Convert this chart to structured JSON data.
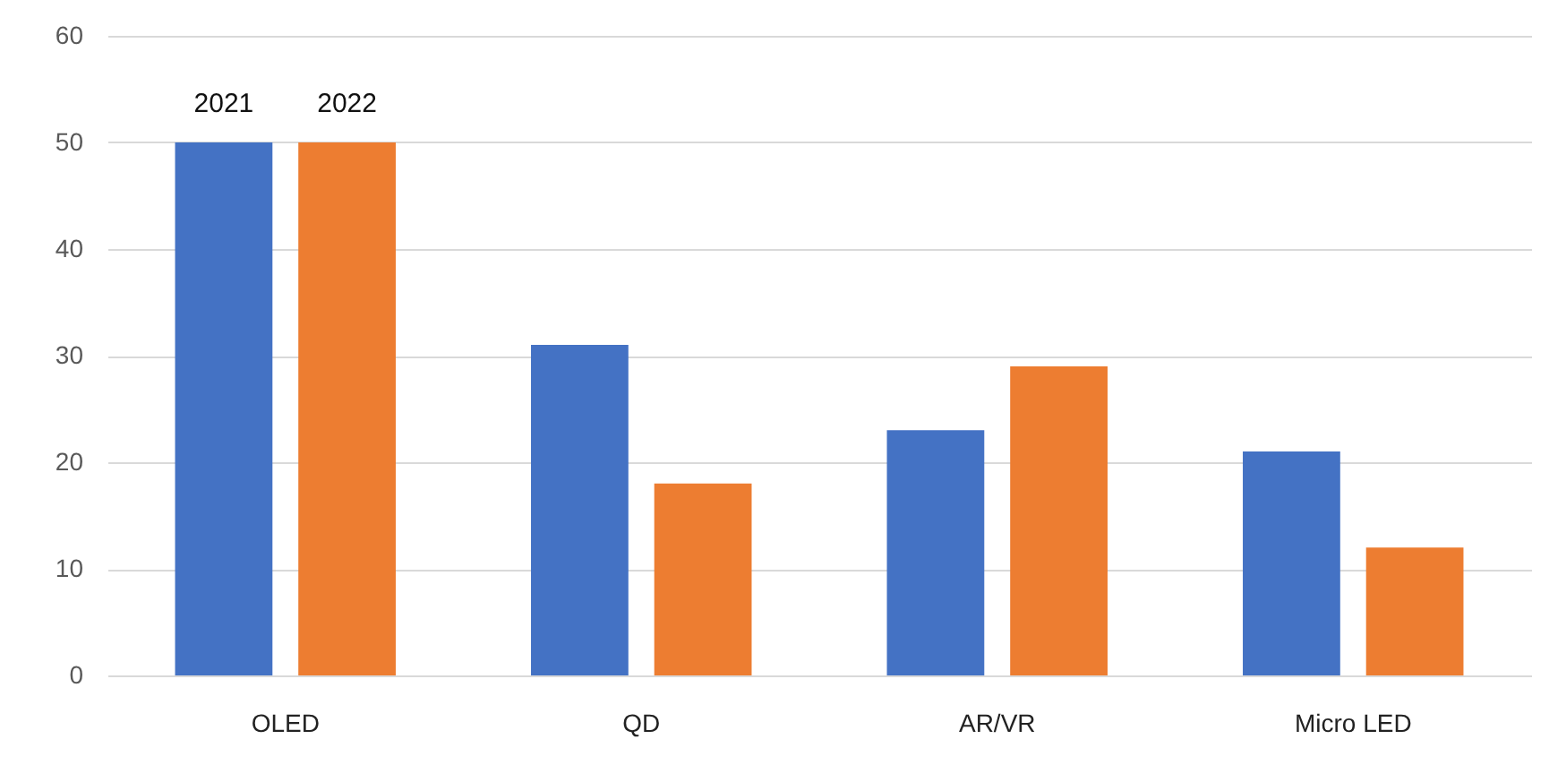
{
  "chart_data": {
    "type": "bar",
    "categories": [
      "OLED",
      "QD",
      "AR/VR",
      "Micro LED"
    ],
    "series": [
      {
        "name": "2021",
        "color": "#4472c4",
        "values": [
          50,
          31,
          23,
          21
        ]
      },
      {
        "name": "2022",
        "color": "#ed7d31",
        "values": [
          50,
          18,
          29,
          12
        ]
      }
    ],
    "ylim": [
      0,
      60
    ],
    "yticks": [
      0,
      10,
      20,
      30,
      40,
      50,
      60
    ],
    "grid": "y",
    "legend": false
  }
}
